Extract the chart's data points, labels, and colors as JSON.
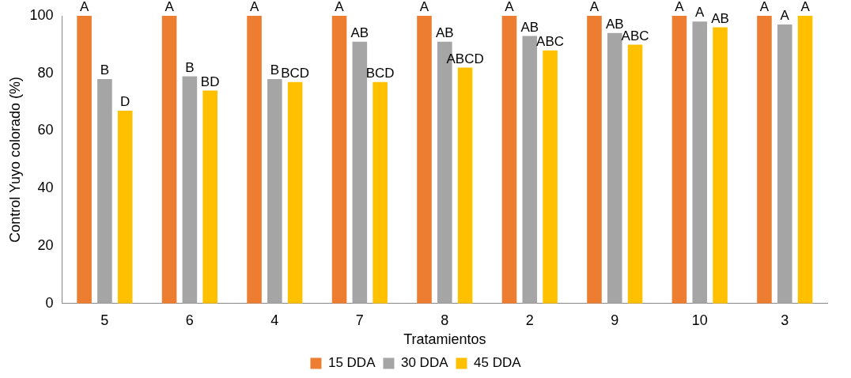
{
  "chart_data": {
    "type": "bar",
    "xlabel": "Tratamientos",
    "ylabel": "Control Yuyo colorado (%)",
    "categories": [
      "5",
      "6",
      "4",
      "7",
      "8",
      "2",
      "9",
      "10",
      "3"
    ],
    "series": [
      {
        "name": "15 DDA",
        "color": "#ed7d31",
        "values": [
          100,
          100,
          100,
          100,
          100,
          100,
          100,
          100,
          100
        ],
        "value_labels": [
          "A",
          "A",
          "A",
          "A",
          "A",
          "A",
          "A",
          "A",
          "A"
        ]
      },
      {
        "name": "30 DDA",
        "color": "#a5a5a5",
        "values": [
          78,
          79,
          78,
          91,
          91,
          93,
          94,
          98,
          97
        ],
        "value_labels": [
          "B",
          "B",
          "B",
          "AB",
          "AB",
          "AB",
          "AB",
          "A",
          "A"
        ]
      },
      {
        "name": "45 DDA",
        "color": "#ffc000",
        "values": [
          67,
          74,
          77,
          77,
          82,
          88,
          90,
          96,
          100
        ],
        "value_labels": [
          "D",
          "BD",
          "BCD",
          "BCD",
          "ABCD",
          "ABC",
          "ABC",
          "AB",
          "A"
        ]
      }
    ],
    "ylim": [
      0,
      100
    ],
    "yticks": [
      0,
      20,
      40,
      60,
      80,
      100
    ],
    "grid": false,
    "legend": "bottom"
  }
}
